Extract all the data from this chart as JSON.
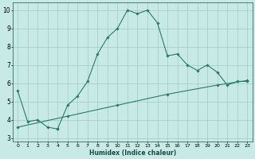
{
  "xlabel": "Humidex (Indice chaleur)",
  "ylabel": "",
  "bg_color": "#c8eae6",
  "grid_color": "#a0ccc8",
  "line_color": "#2a7a6a",
  "xlim": [
    -0.5,
    23.5
  ],
  "ylim": [
    2.8,
    10.4
  ],
  "xticks": [
    0,
    1,
    2,
    3,
    4,
    5,
    6,
    7,
    8,
    9,
    10,
    11,
    12,
    13,
    14,
    15,
    16,
    17,
    18,
    19,
    20,
    21,
    22,
    23
  ],
  "yticks": [
    3,
    4,
    5,
    6,
    7,
    8,
    9,
    10
  ],
  "line1_x": [
    0,
    1,
    2,
    3,
    4,
    4,
    5,
    6,
    7,
    8,
    9,
    10,
    11,
    12,
    13,
    14,
    15,
    16,
    17,
    18,
    19,
    20,
    21,
    22,
    23
  ],
  "line1_y": [
    5.6,
    3.9,
    4.0,
    3.6,
    3.5,
    3.5,
    4.8,
    5.3,
    6.1,
    7.6,
    8.5,
    9.0,
    10.0,
    9.8,
    10.0,
    9.3,
    7.5,
    7.6,
    7.0,
    6.7,
    7.0,
    6.6,
    5.9,
    6.1,
    6.1
  ],
  "line2_x": [
    0,
    5,
    10,
    15,
    20,
    23
  ],
  "line2_y": [
    3.6,
    4.2,
    4.8,
    5.4,
    5.9,
    6.15
  ]
}
